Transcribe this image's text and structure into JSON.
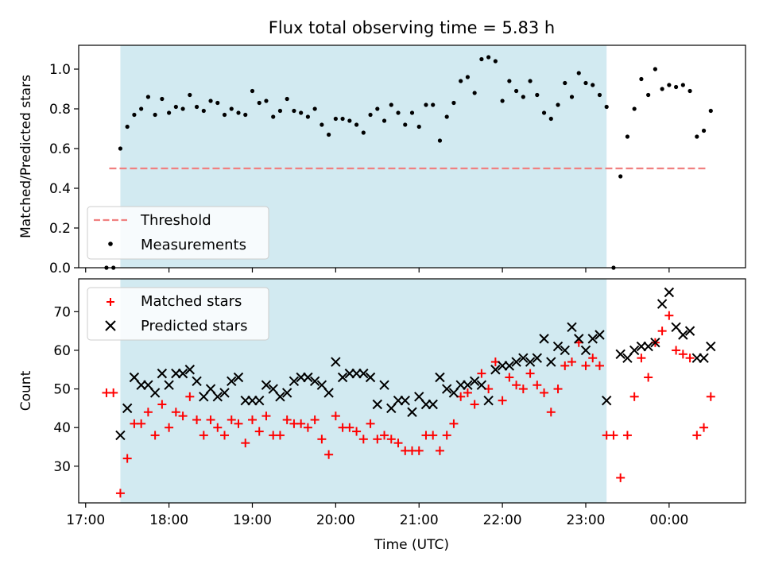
{
  "title": "Flux total observing time = 5.83 h",
  "colors": {
    "shade": "#add8e6",
    "threshold": "#f08080",
    "measurement": "#000000",
    "matched": "#ff0000",
    "predicted": "#000000"
  },
  "chart_data": [
    {
      "type": "scatter",
      "ylabel": "Matched/Predicted stars",
      "ylim": [
        0,
        1.12
      ],
      "yticks": [
        0.0,
        0.2,
        0.4,
        0.6,
        0.8,
        1.0
      ],
      "ytick_labels": [
        "0.0",
        "0.2",
        "0.4",
        "0.6",
        "0.8",
        "1.0"
      ],
      "legend": {
        "location": "lower-left",
        "entries": [
          "Threshold",
          "Measurements"
        ]
      },
      "threshold": {
        "name": "Threshold",
        "value": 0.5,
        "x_start": "17:17",
        "x_end": "00:28"
      },
      "shaded_interval": {
        "start": "17:25",
        "end": "23:15"
      },
      "series": [
        {
          "name": "Measurements",
          "x": [
            "17:15",
            "17:20",
            "17:25",
            "17:30",
            "17:35",
            "17:40",
            "17:45",
            "17:50",
            "17:55",
            "18:00",
            "18:05",
            "18:10",
            "18:15",
            "18:20",
            "18:25",
            "18:30",
            "18:35",
            "18:40",
            "18:45",
            "18:50",
            "18:55",
            "19:00",
            "19:05",
            "19:10",
            "19:15",
            "19:20",
            "19:25",
            "19:30",
            "19:35",
            "19:40",
            "19:45",
            "19:50",
            "19:55",
            "20:00",
            "20:05",
            "20:10",
            "20:15",
            "20:20",
            "20:25",
            "20:30",
            "20:35",
            "20:40",
            "20:45",
            "20:50",
            "20:55",
            "21:00",
            "21:05",
            "21:10",
            "21:15",
            "21:20",
            "21:25",
            "21:30",
            "21:35",
            "21:40",
            "21:45",
            "21:50",
            "21:55",
            "22:00",
            "22:05",
            "22:10",
            "22:15",
            "22:20",
            "22:25",
            "22:30",
            "22:35",
            "22:40",
            "22:45",
            "22:50",
            "22:55",
            "23:00",
            "23:05",
            "23:10",
            "23:15",
            "23:20",
            "23:25",
            "23:30",
            "23:35",
            "23:40",
            "23:45",
            "23:50",
            "23:55",
            "00:00",
            "00:05",
            "00:10",
            "00:15",
            "00:20",
            "00:25",
            "00:30"
          ],
          "y": [
            0.0,
            0.0,
            0.6,
            0.71,
            0.77,
            0.8,
            0.86,
            0.77,
            0.85,
            0.78,
            0.81,
            0.8,
            0.87,
            0.81,
            0.79,
            0.84,
            0.83,
            0.77,
            0.8,
            0.78,
            0.77,
            0.89,
            0.83,
            0.84,
            0.76,
            0.79,
            0.85,
            0.79,
            0.78,
            0.76,
            0.8,
            0.72,
            0.67,
            0.75,
            0.75,
            0.74,
            0.72,
            0.68,
            0.77,
            0.8,
            0.74,
            0.82,
            0.78,
            0.72,
            0.78,
            0.71,
            0.82,
            0.82,
            0.64,
            0.76,
            0.83,
            0.94,
            0.96,
            0.88,
            1.05,
            1.06,
            1.04,
            0.84,
            0.94,
            0.89,
            0.86,
            0.94,
            0.87,
            0.78,
            0.75,
            0.82,
            0.93,
            0.86,
            0.98,
            0.93,
            0.92,
            0.87,
            0.81,
            0.0,
            0.46,
            0.66,
            0.8,
            0.95,
            0.87,
            1.0,
            0.9,
            0.92,
            0.91,
            0.92,
            0.89,
            0.66,
            0.69,
            0.79
          ]
        }
      ]
    },
    {
      "type": "scatter",
      "xlabel": "Time (UTC)",
      "ylabel": "Count",
      "ylim": [
        20.5,
        78.5
      ],
      "yticks": [
        30,
        40,
        50,
        60,
        70
      ],
      "ytick_labels": [
        "30",
        "40",
        "50",
        "60",
        "70"
      ],
      "xticks": [
        "17:00",
        "18:00",
        "19:00",
        "20:00",
        "21:00",
        "22:00",
        "23:00",
        "00:00"
      ],
      "x_range": [
        "16:55",
        "00:55"
      ],
      "legend": {
        "location": "upper-left",
        "entries": [
          "Matched stars",
          "Predicted stars"
        ]
      },
      "shaded_interval": {
        "start": "17:25",
        "end": "23:15"
      },
      "series": [
        {
          "name": "Matched stars",
          "x": [
            "17:15",
            "17:20",
            "17:25",
            "17:30",
            "17:35",
            "17:40",
            "17:45",
            "17:50",
            "17:55",
            "18:00",
            "18:05",
            "18:10",
            "18:15",
            "18:20",
            "18:25",
            "18:30",
            "18:35",
            "18:40",
            "18:45",
            "18:50",
            "18:55",
            "19:00",
            "19:05",
            "19:10",
            "19:15",
            "19:20",
            "19:25",
            "19:30",
            "19:35",
            "19:40",
            "19:45",
            "19:50",
            "19:55",
            "20:00",
            "20:05",
            "20:10",
            "20:15",
            "20:20",
            "20:25",
            "20:30",
            "20:35",
            "20:40",
            "20:45",
            "20:50",
            "20:55",
            "21:00",
            "21:05",
            "21:10",
            "21:15",
            "21:20",
            "21:25",
            "21:30",
            "21:35",
            "21:40",
            "21:45",
            "21:50",
            "21:55",
            "22:00",
            "22:05",
            "22:10",
            "22:15",
            "22:20",
            "22:25",
            "22:30",
            "22:35",
            "22:40",
            "22:45",
            "22:50",
            "22:55",
            "23:00",
            "23:05",
            "23:10",
            "23:15",
            "23:20",
            "23:25",
            "23:30",
            "23:35",
            "23:40",
            "23:45",
            "23:50",
            "23:55",
            "00:00",
            "00:05",
            "00:10",
            "00:15",
            "00:20",
            "00:25",
            "00:30"
          ],
          "y": [
            49,
            49,
            23,
            32,
            41,
            41,
            44,
            38,
            46,
            40,
            44,
            43,
            48,
            42,
            38,
            42,
            40,
            38,
            42,
            41,
            36,
            42,
            39,
            43,
            38,
            38,
            42,
            41,
            41,
            40,
            42,
            37,
            33,
            43,
            40,
            40,
            39,
            37,
            41,
            37,
            38,
            37,
            36,
            34,
            34,
            34,
            38,
            38,
            34,
            38,
            41,
            48,
            49,
            46,
            54,
            50,
            57,
            47,
            53,
            51,
            50,
            54,
            51,
            49,
            44,
            50,
            56,
            57,
            62,
            56,
            58,
            56,
            38,
            38,
            27,
            38,
            48,
            58,
            53,
            62,
            65,
            69,
            60,
            59,
            58,
            38,
            40,
            48
          ]
        },
        {
          "name": "Predicted stars",
          "x": [
            "17:25",
            "17:30",
            "17:35",
            "17:40",
            "17:45",
            "17:50",
            "17:55",
            "18:00",
            "18:05",
            "18:10",
            "18:15",
            "18:20",
            "18:25",
            "18:30",
            "18:35",
            "18:40",
            "18:45",
            "18:50",
            "18:55",
            "19:00",
            "19:05",
            "19:10",
            "19:15",
            "19:20",
            "19:25",
            "19:30",
            "19:35",
            "19:40",
            "19:45",
            "19:50",
            "19:55",
            "20:00",
            "20:05",
            "20:10",
            "20:15",
            "20:20",
            "20:25",
            "20:30",
            "20:35",
            "20:40",
            "20:45",
            "20:50",
            "20:55",
            "21:00",
            "21:05",
            "21:10",
            "21:15",
            "21:20",
            "21:25",
            "21:30",
            "21:35",
            "21:40",
            "21:45",
            "21:50",
            "21:55",
            "22:00",
            "22:05",
            "22:10",
            "22:15",
            "22:20",
            "22:25",
            "22:30",
            "22:35",
            "22:40",
            "22:45",
            "22:50",
            "22:55",
            "23:00",
            "23:05",
            "23:10",
            "23:15",
            "23:25",
            "23:30",
            "23:35",
            "23:40",
            "23:45",
            "23:50",
            "23:55",
            "00:00",
            "00:05",
            "00:10",
            "00:15",
            "00:20",
            "00:25",
            "00:30"
          ],
          "y": [
            38,
            45,
            53,
            51,
            51,
            49,
            54,
            51,
            54,
            54,
            55,
            52,
            48,
            50,
            48,
            49,
            52,
            53,
            47,
            47,
            47,
            51,
            50,
            48,
            49,
            52,
            53,
            53,
            52,
            51,
            49,
            57,
            53,
            54,
            54,
            54,
            53,
            46,
            51,
            45,
            47,
            47,
            44,
            48,
            46,
            46,
            53,
            50,
            49,
            51,
            51,
            52,
            51,
            47,
            55,
            56,
            56,
            57,
            58,
            57,
            58,
            63,
            57,
            61,
            60,
            66,
            63,
            60,
            63,
            64,
            47,
            59,
            58,
            60,
            61,
            61,
            62,
            72,
            75,
            66,
            64,
            65,
            58,
            58,
            61
          ]
        }
      ]
    }
  ]
}
